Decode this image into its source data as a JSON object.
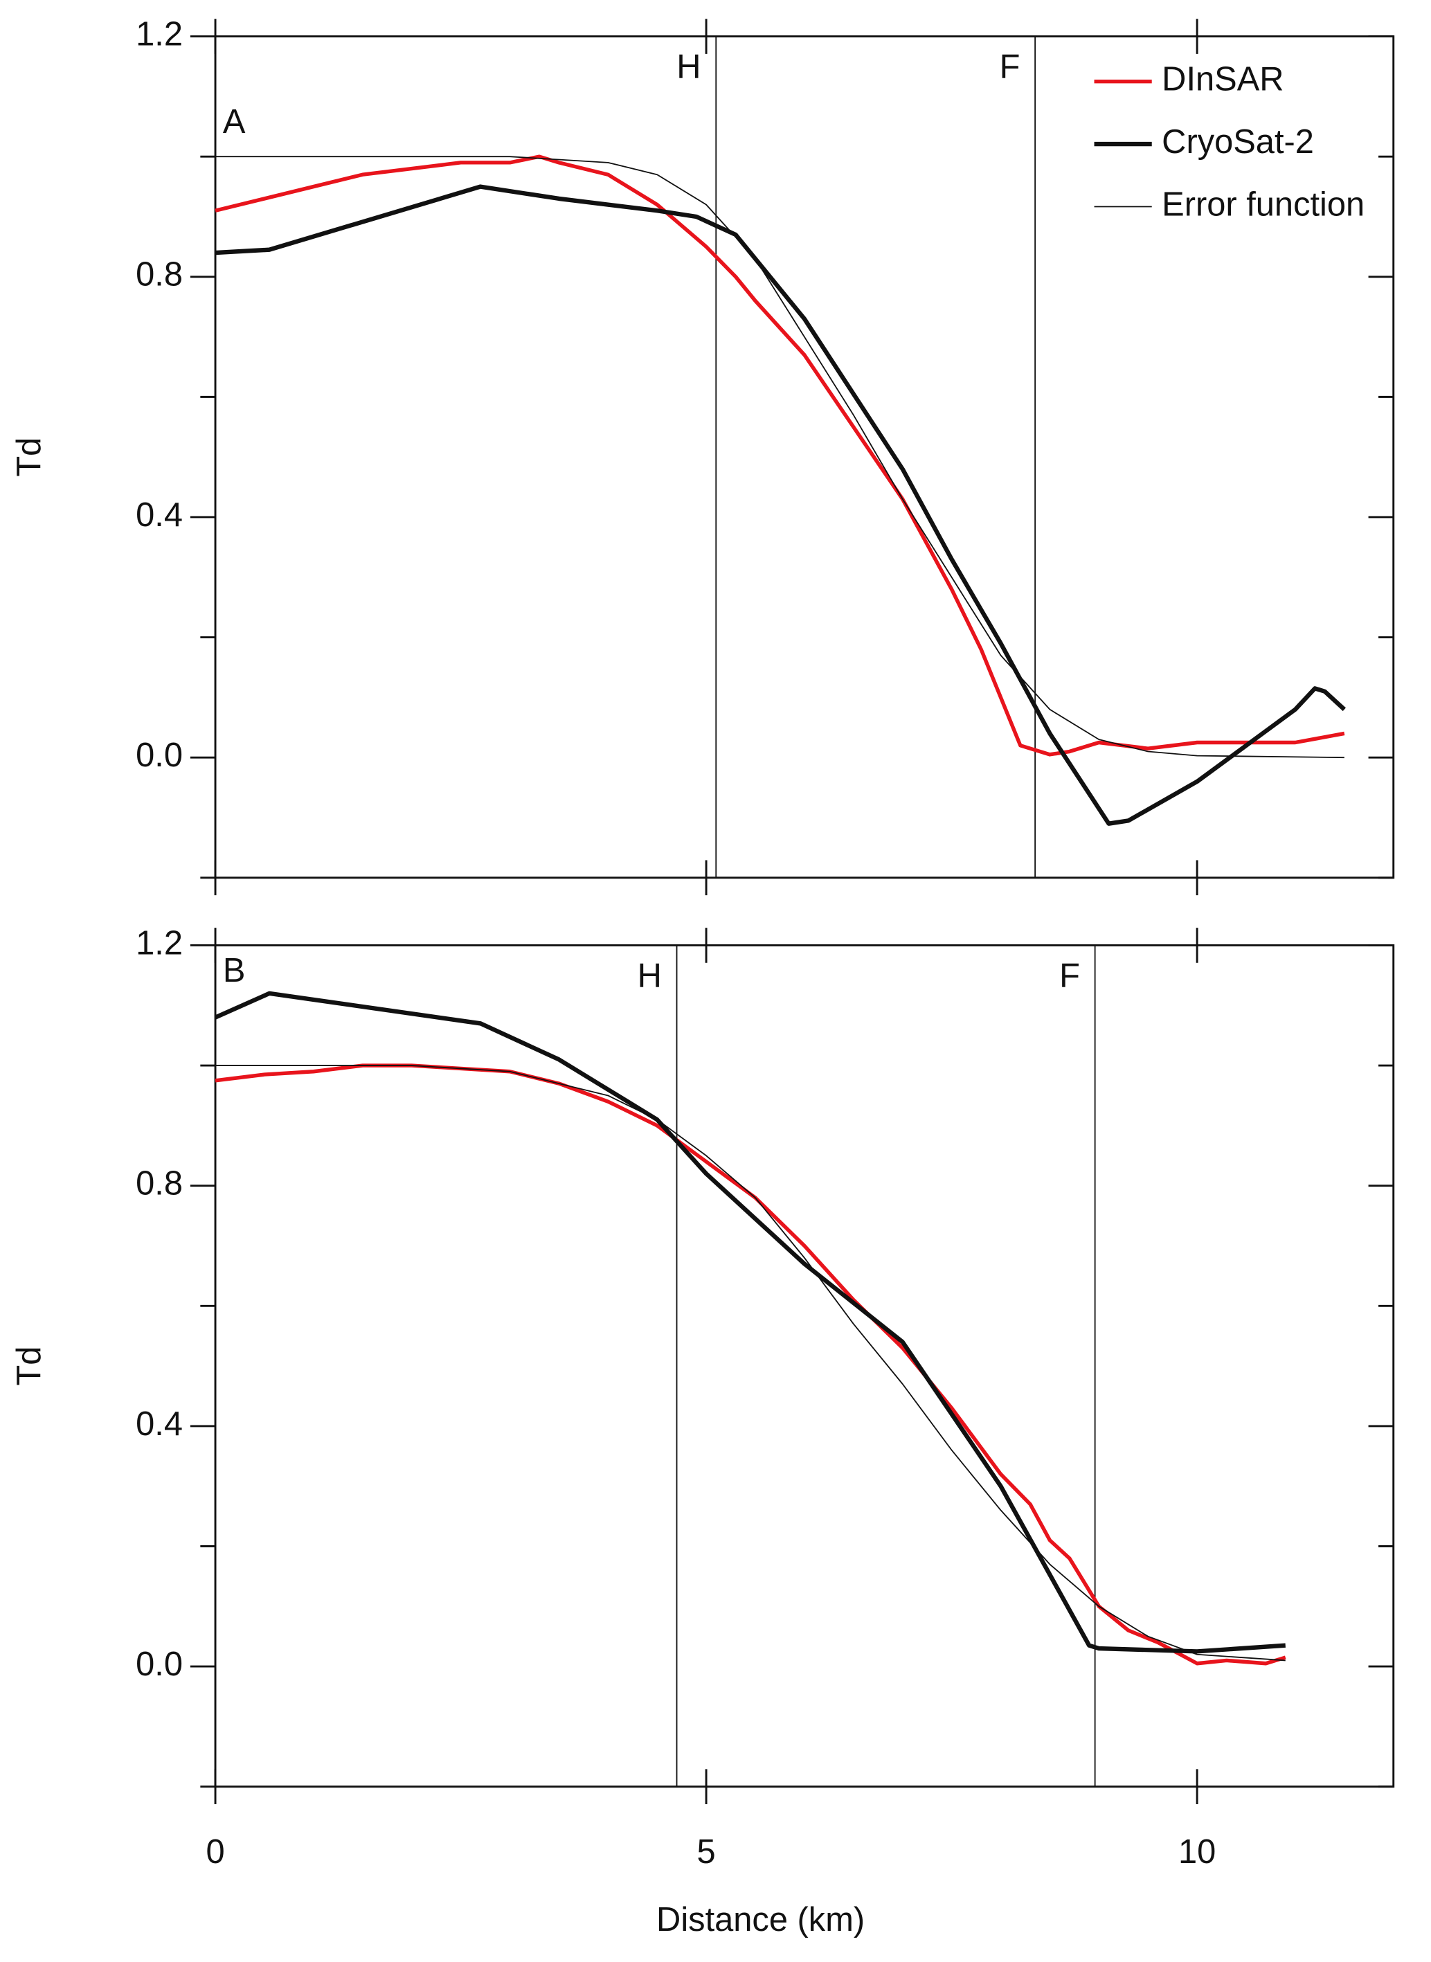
{
  "chart_data": [
    {
      "type": "line",
      "panel_label": "A",
      "ylabel": "Td",
      "legend": "upper right",
      "xlim": [
        0,
        12
      ],
      "xticks": [
        0,
        5,
        10
      ],
      "show_xtick_labels": false,
      "ylim": [
        -0.2,
        1.2
      ],
      "yticks": [
        {
          "value": 0,
          "label": "0.0"
        },
        {
          "value": 0.4,
          "label": "0.4"
        },
        {
          "value": 0.8,
          "label": "0.8"
        },
        {
          "value": 1.2,
          "label": "1.2"
        }
      ],
      "yminorticks": [
        -0.2,
        0.2,
        0.6,
        1.0
      ],
      "vlines": [
        {
          "label": "H",
          "x": 5.1
        },
        {
          "label": "F",
          "x": 8.35
        }
      ],
      "series": [
        {
          "name": "DInSAR",
          "color": "#e8141c",
          "linewidth": 3,
          "x": [
            0,
            0.5,
            1,
            1.5,
            2,
            2.5,
            3,
            3.3,
            3.5,
            4,
            4.5,
            5,
            5.3,
            5.5,
            6,
            6.5,
            7,
            7.5,
            7.8,
            8.0,
            8.2,
            8.5,
            8.7,
            9.0,
            9.5,
            10,
            10.5,
            11,
            11.5
          ],
          "values": [
            0.91,
            0.93,
            0.95,
            0.97,
            0.98,
            0.99,
            0.99,
            1.0,
            0.99,
            0.97,
            0.92,
            0.85,
            0.8,
            0.76,
            0.67,
            0.55,
            0.43,
            0.28,
            0.18,
            0.1,
            0.02,
            0.005,
            0.01,
            0.025,
            0.015,
            0.025,
            0.025,
            0.025,
            0.04
          ]
        },
        {
          "name": "CryoSat-2",
          "color": "#111111",
          "linewidth": 3.5,
          "x": [
            0,
            0.55,
            2.7,
            3.5,
            4.5,
            4.9,
            5.3,
            6,
            7,
            7.5,
            8,
            8.5,
            9.1,
            9.3,
            10,
            11,
            11.2,
            11.3,
            11.5
          ],
          "values": [
            0.84,
            0.845,
            0.95,
            0.93,
            0.91,
            0.9,
            0.87,
            0.73,
            0.48,
            0.33,
            0.19,
            0.04,
            -0.11,
            -0.105,
            -0.04,
            0.08,
            0.115,
            0.11,
            0.08
          ]
        },
        {
          "name": "Error function",
          "color": "#111111",
          "linewidth": 1,
          "x": [
            0,
            3,
            4,
            4.5,
            5,
            5.5,
            6,
            6.5,
            7,
            7.5,
            8,
            8.5,
            9,
            9.5,
            10,
            11.5
          ],
          "values": [
            1.0,
            1.0,
            0.99,
            0.97,
            0.92,
            0.83,
            0.7,
            0.57,
            0.43,
            0.3,
            0.17,
            0.08,
            0.03,
            0.01,
            0.003,
            0
          ]
        }
      ]
    },
    {
      "type": "line",
      "panel_label": "B",
      "ylabel": "Td",
      "xlabel": "Distance (km)",
      "xlim": [
        0,
        12
      ],
      "xticks": [
        0,
        5,
        10
      ],
      "show_xtick_labels": true,
      "ylim": [
        -0.2,
        1.2
      ],
      "yticks": [
        {
          "value": 0,
          "label": "0.0"
        },
        {
          "value": 0.4,
          "label": "0.4"
        },
        {
          "value": 0.8,
          "label": "0.8"
        },
        {
          "value": 1.2,
          "label": "1.2"
        }
      ],
      "yminorticks": [
        -0.2,
        0.2,
        0.6,
        1.0
      ],
      "vlines": [
        {
          "label": "H",
          "x": 4.7
        },
        {
          "label": "F",
          "x": 8.96
        }
      ],
      "series": [
        {
          "color": "#e8141c",
          "linewidth": 3,
          "x": [
            0,
            0.5,
            1,
            1.5,
            2,
            2.5,
            3,
            3.5,
            4,
            4.5,
            5,
            5.5,
            6,
            6.5,
            7,
            7.5,
            8,
            8.3,
            8.5,
            8.7,
            9,
            9.3,
            9.6,
            10,
            10.3,
            10.7,
            10.9
          ],
          "values": [
            0.975,
            0.985,
            0.99,
            1.0,
            1.0,
            0.995,
            0.99,
            0.97,
            0.94,
            0.9,
            0.84,
            0.78,
            0.7,
            0.61,
            0.53,
            0.43,
            0.32,
            0.27,
            0.21,
            0.18,
            0.1,
            0.06,
            0.04,
            0.005,
            0.01,
            0.005,
            0.015
          ]
        },
        {
          "color": "#111111",
          "linewidth": 3.5,
          "x": [
            0,
            0.55,
            2.7,
            3.5,
            4,
            4.5,
            5,
            6,
            7,
            8,
            8.9,
            9,
            10,
            10.9
          ],
          "values": [
            1.08,
            1.12,
            1.07,
            1.01,
            0.96,
            0.91,
            0.82,
            0.67,
            0.54,
            0.3,
            0.035,
            0.03,
            0.025,
            0.035
          ]
        },
        {
          "color": "#111111",
          "linewidth": 1,
          "x": [
            0,
            2,
            3,
            4,
            4.5,
            5,
            5.5,
            6,
            6.5,
            7,
            7.5,
            8,
            8.5,
            9,
            9.5,
            10,
            10.9
          ],
          "values": [
            1.0,
            1.0,
            0.99,
            0.95,
            0.91,
            0.85,
            0.78,
            0.68,
            0.57,
            0.47,
            0.36,
            0.26,
            0.17,
            0.1,
            0.05,
            0.02,
            0.01
          ]
        }
      ]
    }
  ]
}
